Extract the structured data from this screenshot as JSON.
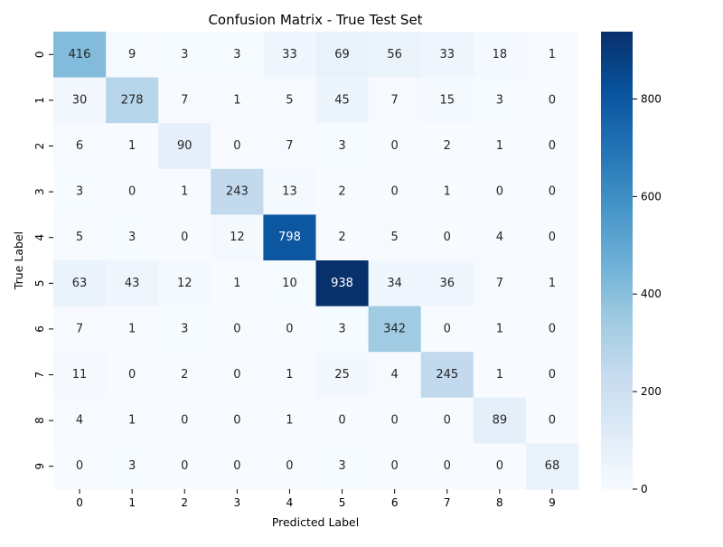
{
  "chart_data": {
    "type": "heatmap",
    "title": "Confusion Matrix - True Test Set",
    "xlabel": "Predicted Label",
    "ylabel": "True Label",
    "x_categories": [
      "0",
      "1",
      "2",
      "3",
      "4",
      "5",
      "6",
      "7",
      "8",
      "9"
    ],
    "y_categories": [
      "0",
      "1",
      "2",
      "3",
      "4",
      "5",
      "6",
      "7",
      "8",
      "9"
    ],
    "matrix": [
      [
        416,
        9,
        3,
        3,
        33,
        69,
        56,
        33,
        18,
        1
      ],
      [
        30,
        278,
        7,
        1,
        5,
        45,
        7,
        15,
        3,
        0
      ],
      [
        6,
        1,
        90,
        0,
        7,
        3,
        0,
        2,
        1,
        0
      ],
      [
        3,
        0,
        1,
        243,
        13,
        2,
        0,
        1,
        0,
        0
      ],
      [
        5,
        3,
        0,
        12,
        798,
        2,
        5,
        0,
        4,
        0
      ],
      [
        63,
        43,
        12,
        1,
        10,
        938,
        34,
        36,
        7,
        1
      ],
      [
        7,
        1,
        3,
        0,
        0,
        3,
        342,
        0,
        1,
        0
      ],
      [
        11,
        0,
        2,
        0,
        1,
        25,
        4,
        245,
        1,
        0
      ],
      [
        4,
        1,
        0,
        0,
        1,
        0,
        0,
        0,
        89,
        0
      ],
      [
        0,
        3,
        0,
        0,
        0,
        3,
        0,
        0,
        0,
        68
      ]
    ],
    "colormap": "Blues",
    "value_range": [
      0,
      938
    ],
    "colorbar": {
      "ticks": [
        0,
        200,
        400,
        600,
        800
      ]
    }
  }
}
